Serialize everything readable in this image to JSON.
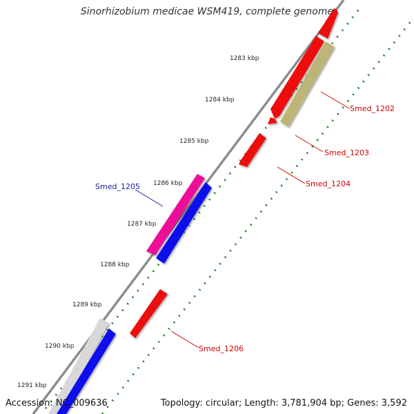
{
  "title": "Sinorhizobium medicae WSM419, complete genome",
  "accession_text": "Accession: NC_009636",
  "summary_text": "Topology: circular; Length: 3,781,904 bp; Genes: 3,592",
  "kbp_labels": [
    "1283 kbp",
    "1284 kbp",
    "1285 kbp",
    "1286 kbp",
    "1287 kbp",
    "1288 kbp",
    "1289 kbp",
    "1290 kbp",
    "1291 kbp"
  ],
  "gene_labels": [
    {
      "name": "Smed_1202",
      "color": "#cc0000"
    },
    {
      "name": "Smed_1203",
      "color": "#cc0000"
    },
    {
      "name": "Smed_1204",
      "color": "#cc0000"
    },
    {
      "name": "Smed_1205",
      "color": "#1a1aa0"
    },
    {
      "name": "Smed_1206",
      "color": "#cc0000"
    }
  ],
  "colors": {
    "backbone": "#8c8c8c",
    "tick_ring": "#1f8a1f",
    "gene_red": "#ee1111",
    "gene_blue": "#1111ee",
    "gene_pink": "#ee1199",
    "gene_olive": "#bdb577",
    "gene_gray": "#d8d8d8"
  }
}
